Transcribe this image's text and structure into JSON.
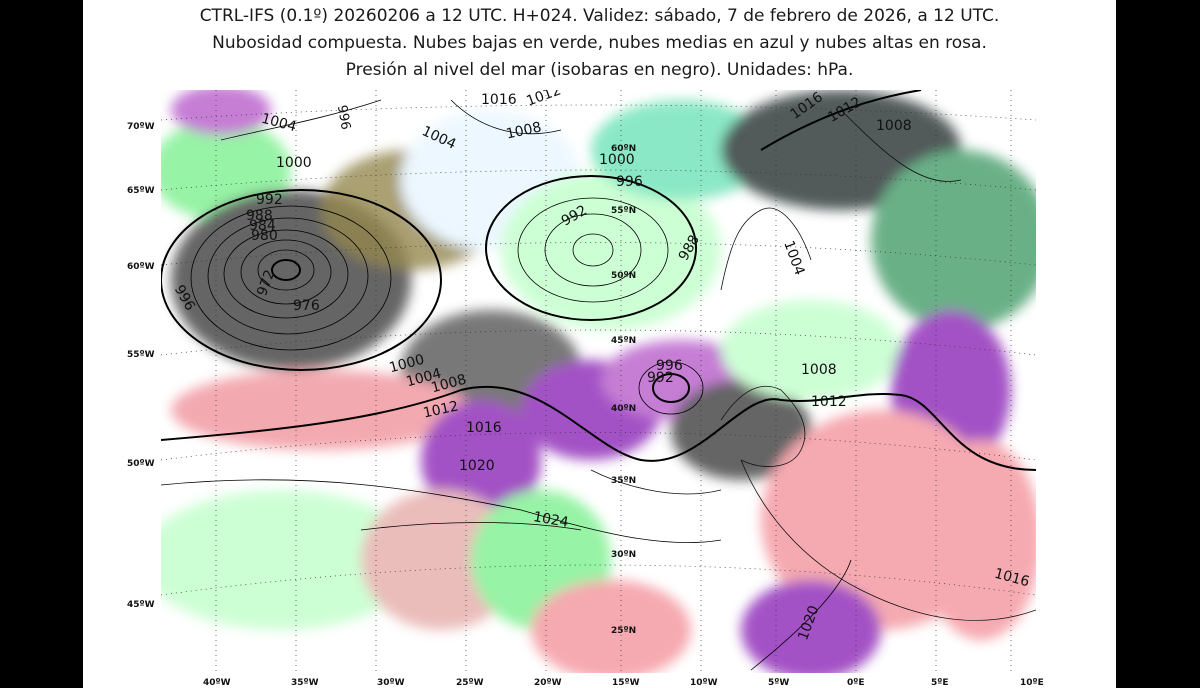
{
  "title": {
    "line1": "CTRL-IFS (0.1º) 20260206 a 12 UTC. H+024. Validez: sábado, 7 de febrero de 2026, a 12 UTC.",
    "line2": "Nubosidad compuesta. Nubes bajas en verde, nubes medias en azul y nubes altas en rosa.",
    "line3": "Presión al nivel del mar (isobaras en negro). Unidades: hPa."
  },
  "colors": {
    "low_clouds": "#8cf29c",
    "mid_clouds": "#7aa8ff",
    "high_clouds": "#f5a0a8",
    "isobars": "#000000"
  },
  "grid": {
    "left_lat_labels": [
      "70ºW",
      "65ºW",
      "60ºW",
      "55ºW",
      "50ºW",
      "45ºW"
    ],
    "bottom_lon_labels": [
      "40ºW",
      "35ºW",
      "30ºW",
      "25ºW",
      "20ºW",
      "15ºW",
      "10ºW",
      "5ºW",
      "0ºE",
      "5ºE",
      "10ºE"
    ],
    "inner_lat_labels": [
      "60ºN",
      "55ºN",
      "50ºN",
      "45ºN",
      "40ºN",
      "35ºN",
      "30ºN",
      "25ºN"
    ]
  },
  "isobars": {
    "labels": [
      "1004",
      "996",
      "1016",
      "1012",
      "1004",
      "1008",
      "1016",
      "1012",
      "1008",
      "1000",
      "1000",
      "996",
      "992",
      "992",
      "988",
      "984",
      "980",
      "972",
      "976",
      "996",
      "988",
      "1004",
      "1000",
      "1004",
      "1008",
      "1012",
      "1016",
      "996",
      "992",
      "1008",
      "1012",
      "1020",
      "1024",
      "1016",
      "1020"
    ]
  }
}
